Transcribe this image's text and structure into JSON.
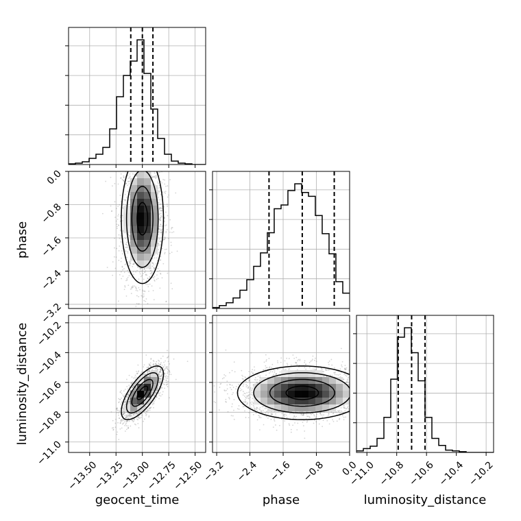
{
  "chart_data": {
    "type": "corner",
    "parameters": [
      "geocent_time",
      "phase",
      "luminosity_distance"
    ],
    "axis_labels": {
      "x": [
        "geocent_time",
        "phase",
        "luminosity_distance"
      ],
      "y": [
        "phase",
        "luminosity_distance"
      ]
    },
    "ranges": {
      "geocent_time": [
        -13.7,
        -12.4
      ],
      "phase": [
        -3.3,
        0.0
      ],
      "luminosity_distance": [
        -11.07,
        -10.15
      ]
    },
    "ticks": {
      "geocent_time": [
        -13.5,
        -13.25,
        -13.0,
        -12.75,
        -12.5
      ],
      "phase": [
        -3.2,
        -2.4,
        -1.6,
        -0.8,
        0.0
      ],
      "luminosity_distance": [
        -11.0,
        -10.8,
        -10.6,
        -10.4,
        -10.2
      ]
    },
    "tick_labels": {
      "geocent_time": [
        "−13.50",
        "−13.25",
        "−13.00",
        "−12.75",
        "−12.50"
      ],
      "phase": [
        "−3.2",
        "−2.4",
        "−1.6",
        "−0.8",
        "0.0"
      ],
      "luminosity_distance": [
        "−11.0",
        "−10.8",
        "−10.6",
        "−10.4",
        "−10.2"
      ]
    },
    "grid": true,
    "histograms": {
      "geocent_time": {
        "bin_edges": [
          -13.7,
          -13.635,
          -13.57,
          -13.505,
          -13.44,
          -13.375,
          -13.31,
          -13.245,
          -13.18,
          -13.115,
          -13.05,
          -12.985,
          -12.92,
          -12.855,
          -12.79,
          -12.725,
          -12.66,
          -12.595,
          -12.53,
          -12.465,
          -12.4
        ],
        "counts": [
          1,
          2,
          4,
          9,
          15,
          25,
          52,
          99,
          130,
          151,
          182,
          133,
          81,
          38,
          15,
          5,
          2,
          1,
          0,
          0
        ],
        "quantiles": [
          -13.11,
          -13.0,
          -12.9
        ]
      },
      "phase": {
        "bin_edges": [
          -3.3,
          -3.135,
          -2.97,
          -2.805,
          -2.64,
          -2.475,
          -2.31,
          -2.145,
          -1.98,
          -1.815,
          -1.65,
          -1.485,
          -1.32,
          -1.155,
          -0.99,
          -0.825,
          -0.66,
          -0.495,
          -0.33,
          -0.165,
          0.0
        ],
        "counts": [
          1,
          3,
          6,
          11,
          19,
          30,
          44,
          58,
          79,
          104,
          108,
          123,
          130,
          121,
          117,
          97,
          78,
          57,
          28,
          16
        ],
        "quantiles": [
          -1.94,
          -1.14,
          -0.37
        ]
      },
      "luminosity_distance": {
        "bin_edges": [
          -11.07,
          -11.024,
          -10.978,
          -10.932,
          -10.886,
          -10.84,
          -10.794,
          -10.748,
          -10.702,
          -10.656,
          -10.61,
          -10.564,
          -10.518,
          -10.472,
          -10.426,
          -10.38,
          -10.334,
          -10.288,
          -10.242,
          -10.196,
          -10.15
        ],
        "counts": [
          2,
          5,
          8,
          18,
          45,
          94,
          148,
          160,
          128,
          92,
          45,
          18,
          9,
          3,
          2,
          1,
          0,
          0,
          0,
          0
        ],
        "quantiles": [
          -10.79,
          -10.7,
          -10.61
        ]
      }
    },
    "posterior_center": {
      "geocent_time": -13.0,
      "phase": -1.14,
      "luminosity_distance": -10.67
    },
    "posterior_sigma": {
      "geocent_time": 0.1,
      "phase": 0.78,
      "luminosity_distance": 0.09
    },
    "correlation": {
      "geocent_time|phase": 0.0,
      "geocent_time|luminosity_distance": 0.7,
      "phase|luminosity_distance": 0.0
    },
    "colors": {
      "line": "#000000",
      "grid": "#b0b0b0",
      "points": "#808080",
      "background": "#ffffff"
    }
  }
}
